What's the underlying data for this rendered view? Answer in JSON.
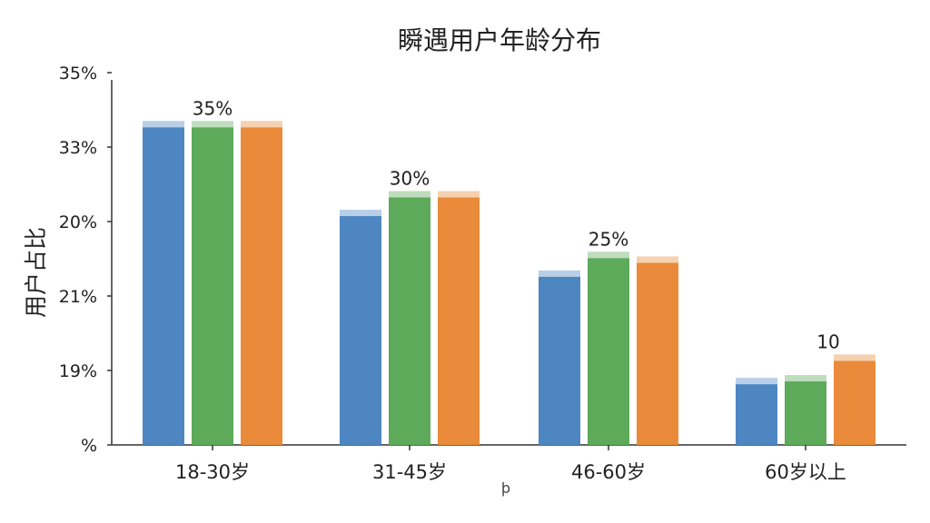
{
  "chart_data": {
    "type": "bar",
    "title": "瞬遇用户年龄分布",
    "ylabel": "用户占比",
    "xlabel": "",
    "categories": [
      "18-30岁",
      "31-45岁",
      "46-60岁",
      "60岁以上"
    ],
    "y_tick_labels": [
      "%",
      "19%",
      "21%",
      "20%",
      "33%",
      "35%"
    ],
    "ylim": [
      0,
      35
    ],
    "grid": false,
    "series": [
      {
        "color": "#4e86c2",
        "values": [
          34,
          24.5,
          18,
          6.5
        ]
      },
      {
        "color": "#5caa5a",
        "values": [
          34,
          26.5,
          20,
          6.8
        ]
      },
      {
        "color": "#e98b3a",
        "values": [
          34,
          26.5,
          19.5,
          9
        ]
      }
    ],
    "data_labels": [
      {
        "category": "18-30岁",
        "text": "35%"
      },
      {
        "category": "31-45岁",
        "text": "30%"
      },
      {
        "category": "46-60岁",
        "text": "25%"
      },
      {
        "category": "60岁以上",
        "text": "10"
      }
    ],
    "stray_text": "þ"
  }
}
